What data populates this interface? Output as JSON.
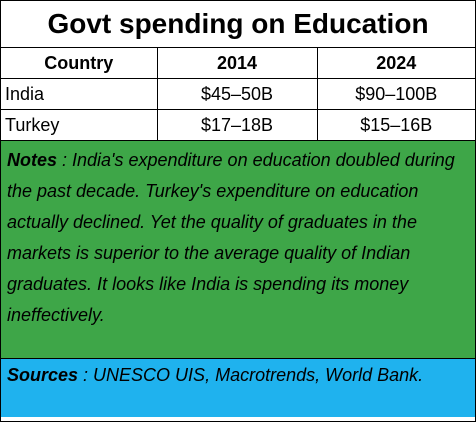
{
  "title": "Govt spending on Education",
  "table": {
    "header": [
      "Country",
      "2014",
      "2024"
    ],
    "rows": [
      [
        "India",
        "$45–50B",
        "$90–100B"
      ],
      [
        "Turkey",
        "$17–18B",
        "$15–16B"
      ]
    ]
  },
  "notes": {
    "label": "Notes",
    "text": " : India's expenditure on education doubled during the past decade.  Turkey's expenditure on education actually declined.  Yet the quality of  graduates in the markets is superior to the average quality of Indian graduates. It looks like India is spending its money ineffectively."
  },
  "sources": {
    "label": "Sources",
    "text": " : UNESCO UIS, Macrotrends, World Bank."
  }
}
